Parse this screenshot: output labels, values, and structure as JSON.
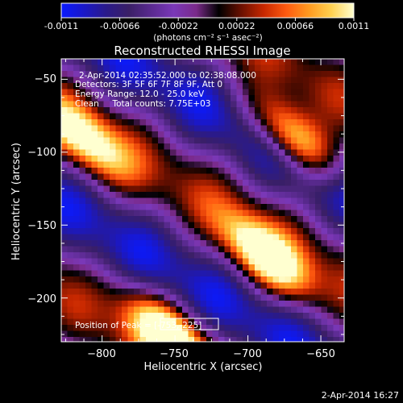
{
  "colorbar": {
    "tick_labels": [
      "-0.0011",
      "-0.00066",
      "-0.00022",
      "0.00022",
      "0.00066",
      "0.0011"
    ],
    "tick_values": [
      -0.0011,
      -0.00066,
      -0.00022,
      0.00022,
      0.00066,
      0.0011
    ],
    "unit_label": "(photons cm⁻² s⁻¹ asec⁻²)",
    "colormap": [
      "#0a1aff",
      "#1a18c8",
      "#2a1a8a",
      "#3a1f66",
      "#5a2a90",
      "#7a38b8",
      "#7a2a8a",
      "#000000",
      "#6a1000",
      "#c82800",
      "#ff5a10",
      "#ff9a20",
      "#ffd050",
      "#ffffd0"
    ]
  },
  "image": {
    "title": "Reconstructed RHESSI Image",
    "info": [
      "2-Apr-2014 02:35:52.000 to 02:38:08.000",
      "Detectors: 3F 5F 6F 7F 8F 9F, Att 0",
      "Energy Range: 12.0 - 25.0 keV",
      "Clean     Total counts: 7.75E+03"
    ],
    "peak_label": "Position of Peak = [-753,-225]"
  },
  "chart_data": {
    "type": "heatmap",
    "title": "Reconstructed RHESSI Image",
    "xlabel": "Heliocentric X (arcsec)",
    "ylabel": "Heliocentric Y (arcsec)",
    "xlim": [
      -828,
      -634
    ],
    "ylim": [
      -230,
      -36
    ],
    "xticks": [
      -800,
      -750,
      -700,
      -650
    ],
    "yticks": [
      -50,
      -100,
      -150,
      -200
    ],
    "xtick_labels": [
      "−800",
      "−750",
      "−700",
      "−650"
    ],
    "ytick_labels": [
      "−50",
      "−100",
      "−150",
      "−200"
    ],
    "value_range": [
      -0.0011,
      0.0011
    ],
    "peak": [
      -753,
      -225
    ],
    "bright_sources": [
      {
        "x": -668,
        "y": -90,
        "level": 1.0
      },
      {
        "x": -688,
        "y": -172,
        "level": 0.95
      },
      {
        "x": -753,
        "y": -225,
        "level": 1.0
      },
      {
        "x": -811,
        "y": -92,
        "level": 0.75
      }
    ]
  },
  "footer": {
    "timestamp": "2-Apr-2014 16:27"
  }
}
